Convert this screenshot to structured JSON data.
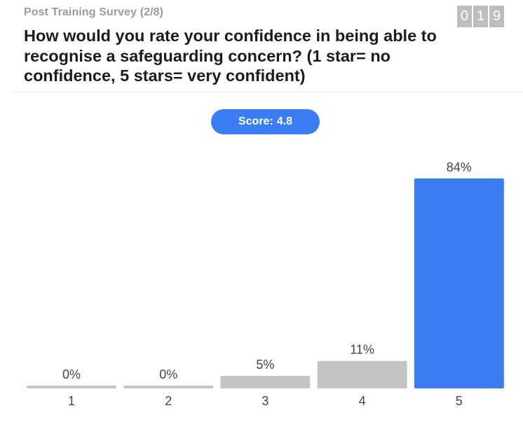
{
  "survey": {
    "label": "Post Training Survey (2/8)",
    "counter_digits": [
      "0",
      "1",
      "9"
    ]
  },
  "question": {
    "text": "How would you rate your confidence in being able to recognise a safeguarding concern? (1 star= no confidence, 5 stars= very confident)"
  },
  "score": {
    "label": "Score:",
    "value": "4.8",
    "color": "#3b7ef4"
  },
  "colors": {
    "bar_default": "#c4c4c4",
    "bar_highlight": "#3b7ef4"
  },
  "chart_data": {
    "type": "bar",
    "categories": [
      "1",
      "2",
      "3",
      "4",
      "5"
    ],
    "values": [
      0,
      0,
      5,
      11,
      84
    ],
    "value_labels": [
      "0%",
      "0%",
      "5%",
      "11%",
      "84%"
    ],
    "highlight_index": 4,
    "ylim": [
      0,
      84
    ],
    "grid": false
  }
}
